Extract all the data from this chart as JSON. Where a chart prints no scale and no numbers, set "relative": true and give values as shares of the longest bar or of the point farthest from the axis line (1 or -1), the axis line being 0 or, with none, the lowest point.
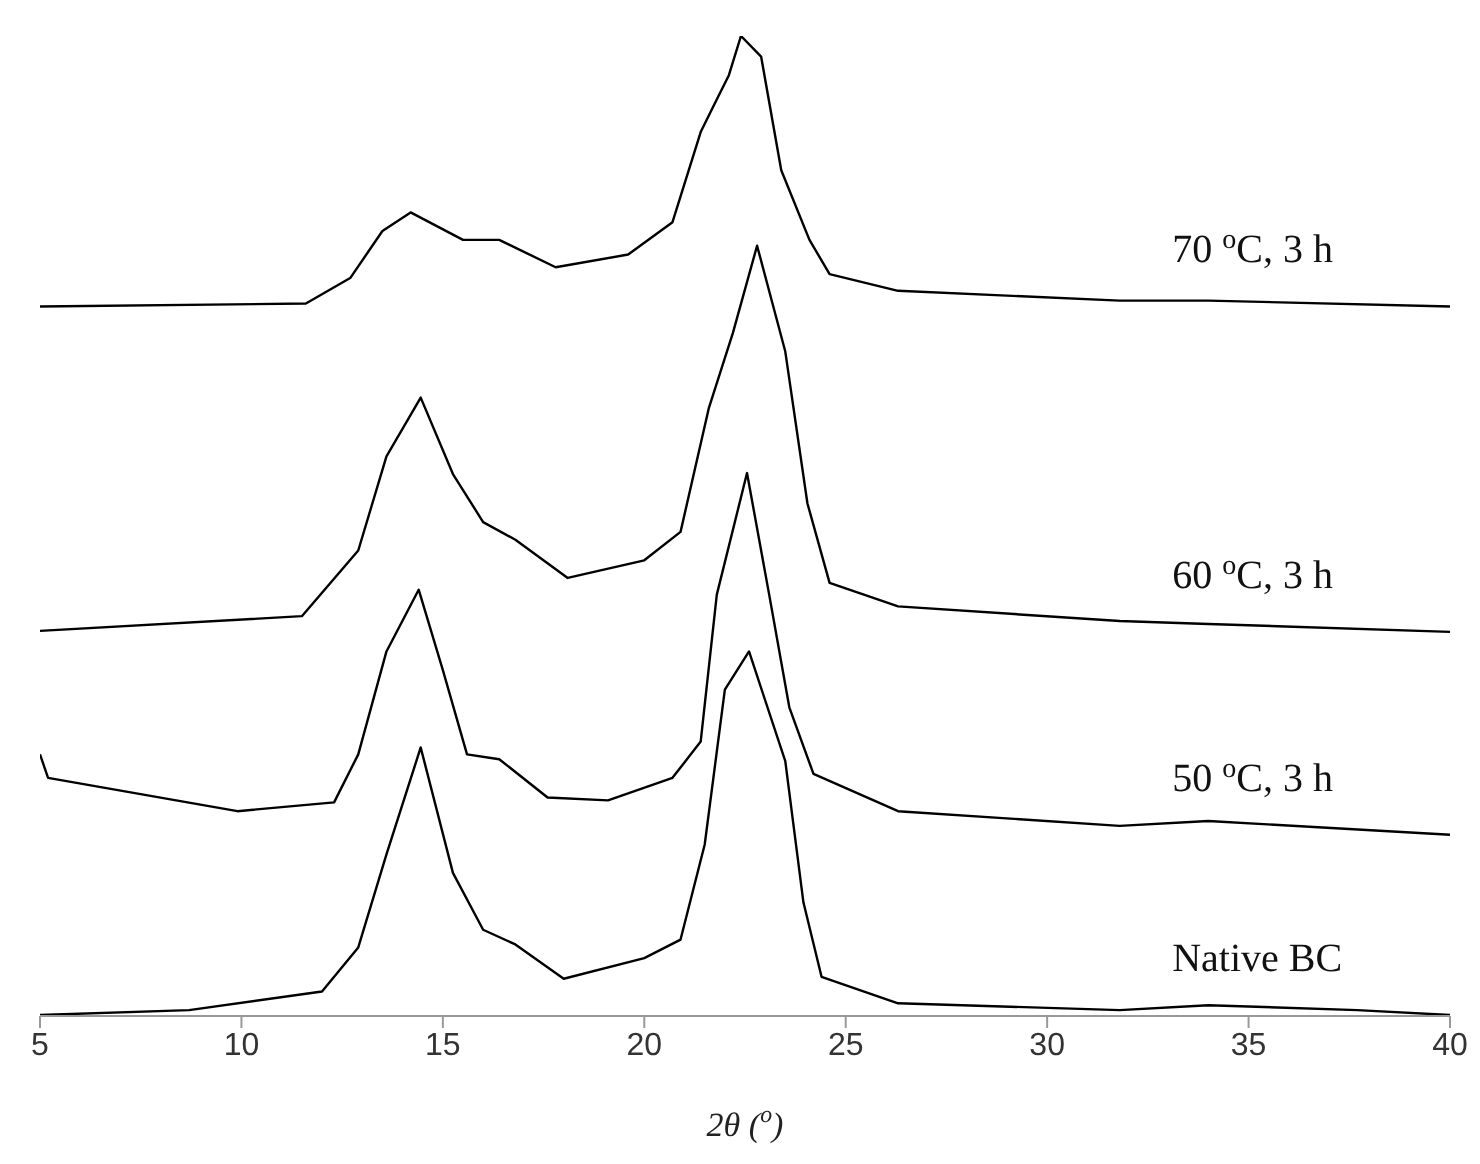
{
  "chart_data": {
    "type": "line",
    "relative": true,
    "xlabel": "2θ ($^{o}$)",
    "xlim": [
      5,
      40
    ],
    "xticks": [
      5,
      10,
      15,
      20,
      25,
      30,
      35,
      40
    ],
    "series": [
      {
        "name": "70 $^{o}$C, 3 h",
        "color": "#000000",
        "x": [
          5,
          11.6,
          12.7,
          13.5,
          14.2,
          15.5,
          16.4,
          17.8,
          19.6,
          20.7,
          21.4,
          21.7,
          22.1,
          22.4,
          22.9,
          23.4,
          24.1,
          24.6,
          26.3,
          31.8,
          34,
          40
        ],
        "values": [
          0.724,
          0.727,
          0.753,
          0.801,
          0.82,
          0.792,
          0.792,
          0.764,
          0.777,
          0.81,
          0.902,
          0.927,
          0.96,
          1,
          0.979,
          0.863,
          0.792,
          0.757,
          0.74,
          0.73,
          0.73,
          0.724
        ]
      },
      {
        "name": "60 $^{o}$C, 3 h",
        "color": "#000000",
        "x": [
          5,
          11.5,
          12.9,
          13.6,
          14.45,
          15.25,
          16,
          16.8,
          18.1,
          20,
          20.9,
          21.6,
          22.2,
          22.8,
          23.5,
          24.05,
          24.6,
          26.3,
          31.8,
          34,
          40
        ],
        "values": [
          0.393,
          0.408,
          0.475,
          0.571,
          0.631,
          0.553,
          0.504,
          0.486,
          0.447,
          0.465,
          0.494,
          0.62,
          0.697,
          0.786,
          0.678,
          0.523,
          0.442,
          0.418,
          0.403,
          0.4,
          0.392
        ]
      },
      {
        "name": "50 $^{o}$C, 3 h",
        "color": "#000000",
        "x": [
          5,
          5.2,
          9.9,
          12.3,
          12.9,
          13.6,
          14.4,
          15,
          15.6,
          16.4,
          17.6,
          19.1,
          20.7,
          21.4,
          21.8,
          22.55,
          23.1,
          23.6,
          24.2,
          26.3,
          31.8,
          34,
          40
        ],
        "values": [
          0.267,
          0.243,
          0.209,
          0.218,
          0.267,
          0.372,
          0.435,
          0.353,
          0.267,
          0.262,
          0.223,
          0.22,
          0.243,
          0.28,
          0.43,
          0.554,
          0.43,
          0.315,
          0.247,
          0.209,
          0.194,
          0.199,
          0.185
        ]
      },
      {
        "name": "Native BC",
        "color": "#000000",
        "x": [
          5,
          8.7,
          12,
          12.9,
          13.6,
          14.45,
          15.25,
          16,
          16.8,
          18,
          20,
          20.9,
          21.5,
          22,
          22.6,
          23.5,
          23.95,
          24.4,
          26.3,
          31.8,
          34,
          37.7,
          40
        ],
        "values": [
          0.001,
          0.006,
          0.025,
          0.07,
          0.165,
          0.274,
          0.146,
          0.088,
          0.073,
          0.038,
          0.059,
          0.078,
          0.175,
          0.333,
          0.372,
          0.26,
          0.116,
          0.04,
          0.013,
          0.006,
          0.011,
          0.006,
          0.001
        ]
      }
    ]
  }
}
